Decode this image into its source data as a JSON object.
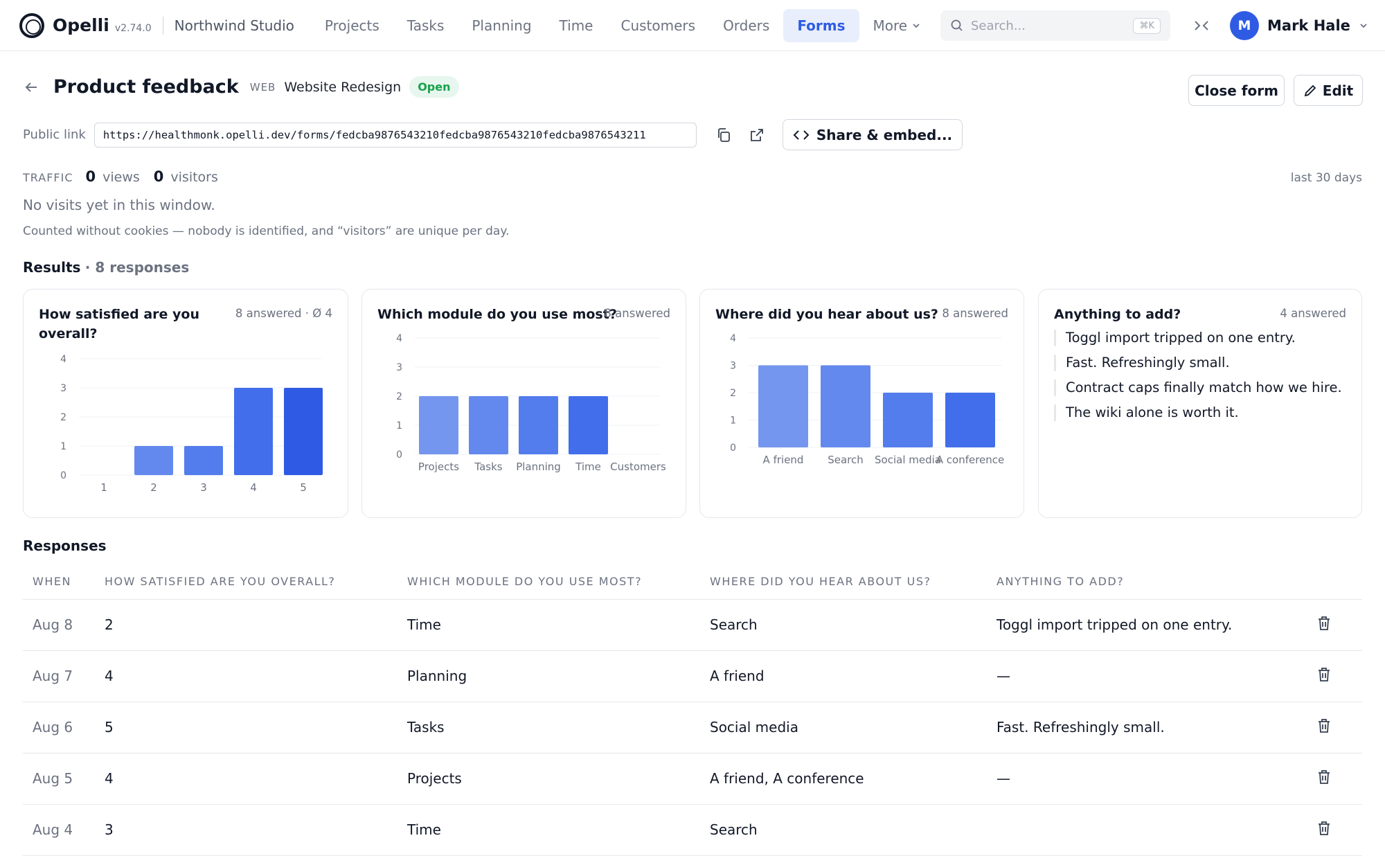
{
  "nav": {
    "brand": "Opelli",
    "version": "v2.74.0",
    "workspace": "Northwind Studio",
    "items": [
      {
        "label": "Projects",
        "active": false
      },
      {
        "label": "Tasks",
        "active": false
      },
      {
        "label": "Planning",
        "active": false
      },
      {
        "label": "Time",
        "active": false
      },
      {
        "label": "Customers",
        "active": false
      },
      {
        "label": "Orders",
        "active": false
      },
      {
        "label": "Forms",
        "active": true
      }
    ],
    "more_label": "More",
    "search_placeholder": "Search...",
    "search_shortcut": "⌘K",
    "user_initial": "M",
    "user_name": "Mark Hale"
  },
  "header": {
    "title": "Product feedback",
    "project_tag": "WEB",
    "project_name": "Website Redesign",
    "status": "Open",
    "close_label": "Close form",
    "edit_label": "Edit"
  },
  "public_link": {
    "label": "Public link",
    "url": "https://healthmonk.opelli.dev/forms/fedcba9876543210fedcba9876543210fedcba9876543211",
    "share_label": "Share & embed..."
  },
  "traffic": {
    "label": "TRAFFIC",
    "views": "0",
    "views_unit": "views",
    "visitors": "0",
    "visitors_unit": "visitors",
    "range": "last 30 days",
    "empty": "No visits yet in this window.",
    "note": "Counted without cookies — nobody is identified, and “visitors” are unique per day."
  },
  "results": {
    "label": "Results",
    "count": "· 8 responses"
  },
  "chart_data": [
    {
      "type": "bar",
      "title": "How satisfied are you overall?",
      "meta": "8 answered · Ø 4",
      "categories": [
        "1",
        "2",
        "3",
        "4",
        "5"
      ],
      "values": [
        0,
        1,
        1,
        3,
        3
      ],
      "ylim": [
        0,
        4
      ],
      "yticks": [
        "0",
        "1",
        "2",
        "3",
        "4"
      ],
      "color": "#2f5be4"
    },
    {
      "type": "bar",
      "title": "Which module do you use most?",
      "meta": "8 answered",
      "categories": [
        "Projects",
        "Tasks",
        "Planning",
        "Time",
        "Customers"
      ],
      "values": [
        2,
        2,
        2,
        2,
        0
      ],
      "ylim": [
        0,
        4
      ],
      "yticks": [
        "0",
        "1",
        "2",
        "3",
        "4"
      ],
      "color": "#2f5be4"
    },
    {
      "type": "bar",
      "title": "Where did you hear about us?",
      "meta": "8 answered",
      "categories": [
        "A friend",
        "Search",
        "Social media",
        "A conference"
      ],
      "values": [
        3,
        3,
        2,
        2
      ],
      "ylim": [
        0,
        4
      ],
      "yticks": [
        "0",
        "1",
        "2",
        "3",
        "4"
      ],
      "color": "#2f5be4"
    }
  ],
  "comments_card": {
    "title": "Anything to add?",
    "meta": "4 answered",
    "items": [
      "Toggl import tripped on one entry.",
      "Fast. Refreshingly small.",
      "Contract caps finally match how we hire.",
      "The wiki alone is worth it."
    ]
  },
  "responses": {
    "label": "Responses",
    "columns": [
      "WHEN",
      "HOW SATISFIED ARE YOU OVERALL?",
      "WHICH MODULE DO YOU USE MOST?",
      "WHERE DID YOU HEAR ABOUT US?",
      "ANYTHING TO ADD?"
    ],
    "rows": [
      {
        "when": "Aug 8",
        "satisfied": "2",
        "module": "Time",
        "source": "Search",
        "comment": "Toggl import tripped on one entry."
      },
      {
        "when": "Aug 7",
        "satisfied": "4",
        "module": "Planning",
        "source": "A friend",
        "comment": "—"
      },
      {
        "when": "Aug 6",
        "satisfied": "5",
        "module": "Tasks",
        "source": "Social media",
        "comment": "Fast. Refreshingly small."
      },
      {
        "when": "Aug 5",
        "satisfied": "4",
        "module": "Projects",
        "source": "A friend, A conference",
        "comment": "—"
      },
      {
        "when": "Aug 4",
        "satisfied": "3",
        "module": "Time",
        "source": "Search",
        "comment": ""
      }
    ]
  }
}
